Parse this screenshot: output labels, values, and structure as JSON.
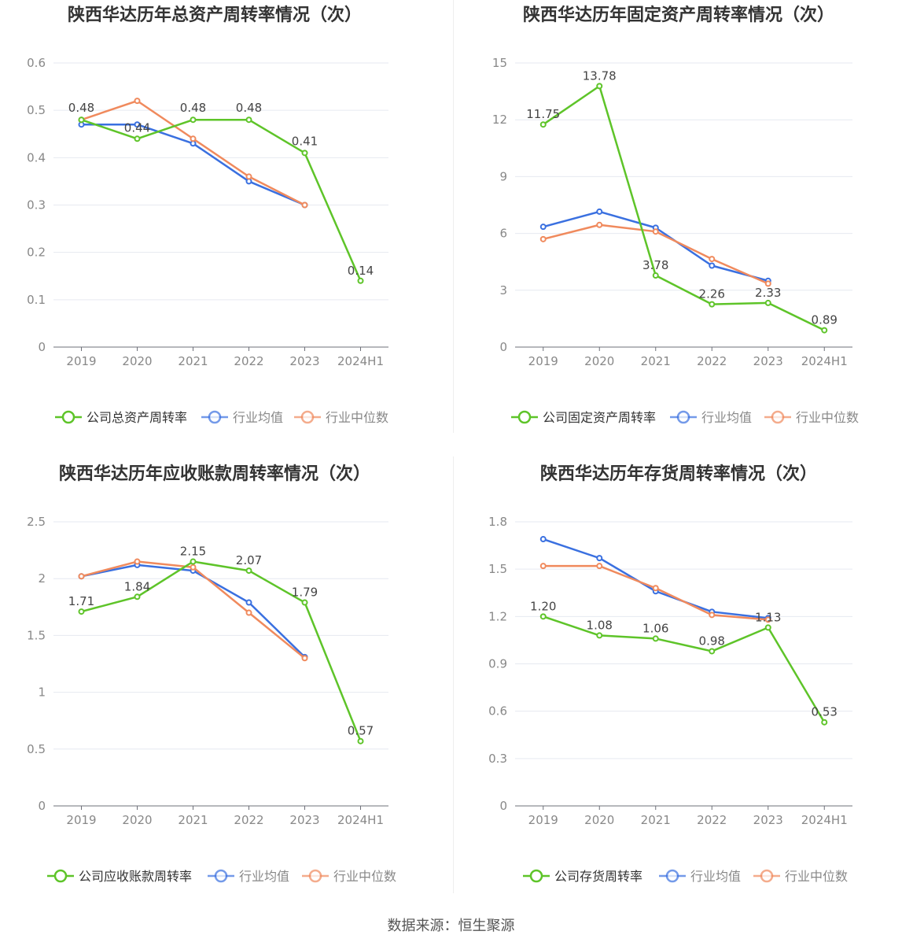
{
  "colors": {
    "company": "#5ec429",
    "average": "#3a70e0",
    "median": "#f08a5d",
    "grid": "#e6e9f0",
    "axis": "#888888",
    "title": "#333333"
  },
  "source_text": "数据来源：恒生聚源",
  "chart_data": [
    {
      "type": "line",
      "title": "陕西华达历年总资产周转率情况（次）",
      "categories": [
        "2019",
        "2020",
        "2021",
        "2022",
        "2023",
        "2024H1"
      ],
      "ylim": [
        0,
        0.6
      ],
      "yticks": [
        "0",
        "0.1",
        "0.2",
        "0.3",
        "0.4",
        "0.5",
        "0.6"
      ],
      "grid": true,
      "legend": "bottom",
      "series": [
        {
          "name": "公司总资产周转率",
          "color_key": "company",
          "values": [
            0.48,
            0.44,
            0.48,
            0.48,
            0.41,
            0.14
          ],
          "labels": [
            "0.48",
            "0.44",
            "0.48",
            "0.48",
            "0.41",
            "0.14"
          ]
        },
        {
          "name": "行业均值",
          "color_key": "average",
          "values": [
            0.47,
            0.47,
            0.43,
            0.35,
            0.3,
            null
          ]
        },
        {
          "name": "行业中位数",
          "color_key": "median",
          "values": [
            0.48,
            0.52,
            0.44,
            0.36,
            0.3,
            null
          ]
        }
      ]
    },
    {
      "type": "line",
      "title": "陕西华达历年固定资产周转率情况（次）",
      "categories": [
        "2019",
        "2020",
        "2021",
        "2022",
        "2023",
        "2024H1"
      ],
      "ylim": [
        0,
        15
      ],
      "yticks": [
        "0",
        "3",
        "6",
        "9",
        "12",
        "15"
      ],
      "grid": true,
      "legend": "bottom",
      "series": [
        {
          "name": "公司固定资产周转率",
          "color_key": "company",
          "values": [
            11.75,
            13.78,
            3.78,
            2.26,
            2.33,
            0.89
          ],
          "labels": [
            "11.75",
            "13.78",
            "3.78",
            "2.26",
            "2.33",
            "0.89"
          ]
        },
        {
          "name": "行业均值",
          "color_key": "average",
          "values": [
            6.35,
            7.15,
            6.3,
            4.3,
            3.5,
            null
          ]
        },
        {
          "name": "行业中位数",
          "color_key": "median",
          "values": [
            5.7,
            6.45,
            6.1,
            4.65,
            3.35,
            null
          ]
        }
      ]
    },
    {
      "type": "line",
      "title": "陕西华达历年应收账款周转率情况（次）",
      "categories": [
        "2019",
        "2020",
        "2021",
        "2022",
        "2023",
        "2024H1"
      ],
      "ylim": [
        0,
        2.5
      ],
      "yticks": [
        "0",
        "0.5",
        "1",
        "1.5",
        "2",
        "2.5"
      ],
      "grid": true,
      "legend": "bottom",
      "series": [
        {
          "name": "公司应收账款周转率",
          "color_key": "company",
          "values": [
            1.71,
            1.84,
            2.15,
            2.07,
            1.79,
            0.57
          ],
          "labels": [
            "1.71",
            "1.84",
            "2.15",
            "2.07",
            "1.79",
            "0.57"
          ]
        },
        {
          "name": "行业均值",
          "color_key": "average",
          "values": [
            2.02,
            2.12,
            2.07,
            1.79,
            1.31,
            null
          ]
        },
        {
          "name": "行业中位数",
          "color_key": "median",
          "values": [
            2.02,
            2.15,
            2.1,
            1.7,
            1.3,
            null
          ]
        }
      ]
    },
    {
      "type": "line",
      "title": "陕西华达历年存货周转率情况（次）",
      "categories": [
        "2019",
        "2020",
        "2021",
        "2022",
        "2023",
        "2024H1"
      ],
      "ylim": [
        0,
        1.8
      ],
      "yticks": [
        "0",
        "0.3",
        "0.6",
        "0.9",
        "1.2",
        "1.5",
        "1.8"
      ],
      "grid": true,
      "legend": "bottom",
      "series": [
        {
          "name": "公司存货周转率",
          "color_key": "company",
          "values": [
            1.2,
            1.08,
            1.06,
            0.98,
            1.13,
            0.53
          ],
          "labels": [
            "1.20",
            "1.08",
            "1.06",
            "0.98",
            "1.13",
            "0.53"
          ]
        },
        {
          "name": "行业均值",
          "color_key": "average",
          "values": [
            1.69,
            1.57,
            1.36,
            1.23,
            1.19,
            null
          ]
        },
        {
          "name": "行业中位数",
          "color_key": "median",
          "values": [
            1.52,
            1.52,
            1.38,
            1.21,
            1.18,
            null
          ]
        }
      ]
    }
  ]
}
